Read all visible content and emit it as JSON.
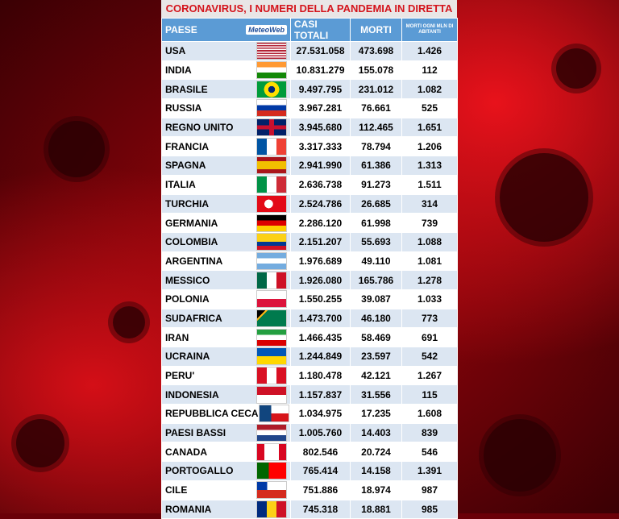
{
  "title": "CORONAVIRUS, I NUMERI DELLA PANDEMIA IN DIRETTA",
  "headers": {
    "country": "PAESE",
    "logo": "MeteoWeb",
    "cases": "CASI TOTALI",
    "deaths": "MORTI",
    "per_million": "MORTI OGNI MLN DI ABITANTI"
  },
  "rows": [
    {
      "country": "USA",
      "cases": "27.531.058",
      "deaths": "473.698",
      "per_million": "1.426",
      "flag": "us-flag"
    },
    {
      "country": "INDIA",
      "cases": "10.831.279",
      "deaths": "155.078",
      "per_million": "112",
      "flag": "india-flag"
    },
    {
      "country": "BRASILE",
      "cases": "9.497.795",
      "deaths": "231.012",
      "per_million": "1.082",
      "flag": "brazil-flag"
    },
    {
      "country": "RUSSIA",
      "cases": "3.967.281",
      "deaths": "76.661",
      "per_million": "525",
      "flag": "russia-flag"
    },
    {
      "country": "REGNO UNITO",
      "cases": "3.945.680",
      "deaths": "112.465",
      "per_million": "1.651",
      "flag": "uk-flag"
    },
    {
      "country": "FRANCIA",
      "cases": "3.317.333",
      "deaths": "78.794",
      "per_million": "1.206",
      "flag": "france-flag"
    },
    {
      "country": "SPAGNA",
      "cases": "2.941.990",
      "deaths": "61.386",
      "per_million": "1.313",
      "flag": "spain-flag"
    },
    {
      "country": "ITALIA",
      "cases": "2.636.738",
      "deaths": "91.273",
      "per_million": "1.511",
      "flag": "italy-flag"
    },
    {
      "country": "TURCHIA",
      "cases": "2.524.786",
      "deaths": "26.685",
      "per_million": "314",
      "flag": "turkey-flag"
    },
    {
      "country": "GERMANIA",
      "cases": "2.286.120",
      "deaths": "61.998",
      "per_million": "739",
      "flag": "germany-flag"
    },
    {
      "country": "COLOMBIA",
      "cases": "2.151.207",
      "deaths": "55.693",
      "per_million": "1.088",
      "flag": "colombia-flag"
    },
    {
      "country": "ARGENTINA",
      "cases": "1.976.689",
      "deaths": "49.110",
      "per_million": "1.081",
      "flag": "argentina-flag"
    },
    {
      "country": "MESSICO",
      "cases": "1.926.080",
      "deaths": "165.786",
      "per_million": "1.278",
      "flag": "mexico-flag"
    },
    {
      "country": "POLONIA",
      "cases": "1.550.255",
      "deaths": "39.087",
      "per_million": "1.033",
      "flag": "poland-flag"
    },
    {
      "country": "SUDAFRICA",
      "cases": "1.473.700",
      "deaths": "46.180",
      "per_million": "773",
      "flag": "south-africa-flag"
    },
    {
      "country": "IRAN",
      "cases": "1.466.435",
      "deaths": "58.469",
      "per_million": "691",
      "flag": "iran-flag"
    },
    {
      "country": "UCRAINA",
      "cases": "1.244.849",
      "deaths": "23.597",
      "per_million": "542",
      "flag": "ukraine-flag"
    },
    {
      "country": "PERU'",
      "cases": "1.180.478",
      "deaths": "42.121",
      "per_million": "1.267",
      "flag": "peru-flag"
    },
    {
      "country": "INDONESIA",
      "cases": "1.157.837",
      "deaths": "31.556",
      "per_million": "115",
      "flag": "indonesia-flag"
    },
    {
      "country": "REPUBBLICA CECA",
      "cases": "1.034.975",
      "deaths": "17.235",
      "per_million": "1.608",
      "flag": "czech-flag"
    },
    {
      "country": "PAESI BASSI",
      "cases": "1.005.760",
      "deaths": "14.403",
      "per_million": "839",
      "flag": "netherlands-flag"
    },
    {
      "country": "CANADA",
      "cases": "802.546",
      "deaths": "20.724",
      "per_million": "546",
      "flag": "canada-flag"
    },
    {
      "country": "PORTOGALLO",
      "cases": "765.414",
      "deaths": "14.158",
      "per_million": "1.391",
      "flag": "portugal-flag"
    },
    {
      "country": "CILE",
      "cases": "751.886",
      "deaths": "18.974",
      "per_million": "987",
      "flag": "chile-flag"
    },
    {
      "country": "ROMANIA",
      "cases": "745.318",
      "deaths": "18.881",
      "per_million": "985",
      "flag": "romania-flag"
    }
  ],
  "colors": {
    "accent": "#d4141c",
    "header_bg": "#5b9bd5",
    "stripe": "#dce6f2"
  }
}
